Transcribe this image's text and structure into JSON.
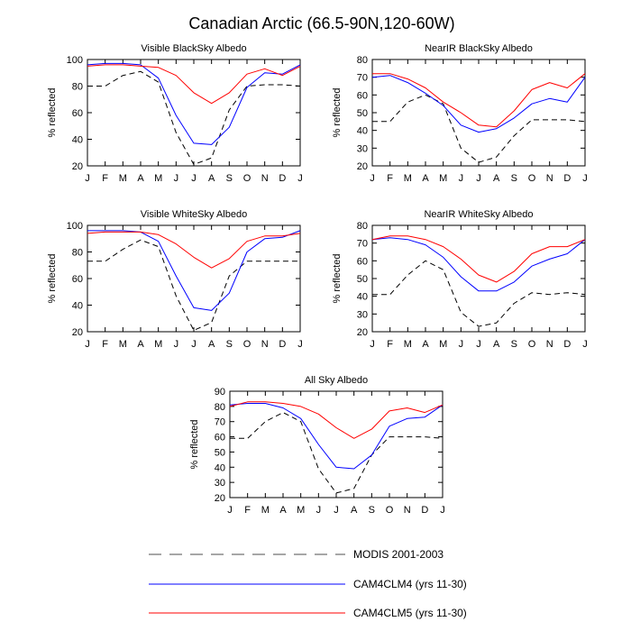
{
  "title": "Canadian Arctic (66.5-90N,120-60W)",
  "legend": [
    {
      "label": "MODIS 2001-2003",
      "color": "#000000",
      "dash": true
    },
    {
      "label": "CAM4CLM4 (yrs 11-30)",
      "color": "#0000ff",
      "dash": false
    },
    {
      "label": "CAM4CLM5 (yrs 11-30)",
      "color": "#ff0000",
      "dash": false
    }
  ],
  "chart_data": [
    {
      "type": "line",
      "title": "Visible BlackSky Albedo",
      "ylabel": "% reflected",
      "xlabel": "",
      "categories": [
        "J",
        "F",
        "M",
        "A",
        "M",
        "J",
        "J",
        "A",
        "S",
        "O",
        "N",
        "D",
        "J"
      ],
      "ylim": [
        20,
        100
      ],
      "yticks": [
        20,
        40,
        60,
        80,
        100
      ],
      "series": [
        {
          "name": "MODIS 2001-2003",
          "color": "#000000",
          "dash": true,
          "values": [
            80,
            80,
            88,
            91,
            83,
            45,
            21,
            26,
            62,
            80,
            81,
            81,
            80
          ]
        },
        {
          "name": "CAM4CLM4 (yrs 11-30)",
          "color": "#0000ff",
          "dash": false,
          "values": [
            96,
            97,
            97,
            96,
            86,
            58,
            37,
            36,
            49,
            79,
            90,
            89,
            96
          ]
        },
        {
          "name": "CAM4CLM5 (yrs 11-30)",
          "color": "#ff0000",
          "dash": false,
          "values": [
            95,
            96,
            96,
            95,
            94,
            88,
            75,
            67,
            75,
            89,
            93,
            88,
            95
          ]
        }
      ]
    },
    {
      "type": "line",
      "title": "NearIR BlackSky Albedo",
      "ylabel": "% reflected",
      "xlabel": "",
      "categories": [
        "J",
        "F",
        "M",
        "A",
        "M",
        "J",
        "J",
        "A",
        "S",
        "O",
        "N",
        "D",
        "J"
      ],
      "ylim": [
        20,
        80
      ],
      "yticks": [
        20,
        30,
        40,
        50,
        60,
        70,
        80
      ],
      "series": [
        {
          "name": "MODIS 2001-2003",
          "color": "#000000",
          "dash": true,
          "values": [
            45,
            45,
            56,
            60,
            55,
            30,
            22,
            25,
            37,
            46,
            46,
            46,
            45
          ]
        },
        {
          "name": "CAM4CLM4 (yrs 11-30)",
          "color": "#0000ff",
          "dash": false,
          "values": [
            70,
            71,
            67,
            61,
            54,
            43,
            39,
            41,
            47,
            55,
            58,
            56,
            70
          ]
        },
        {
          "name": "CAM4CLM5 (yrs 11-30)",
          "color": "#ff0000",
          "dash": false,
          "values": [
            72,
            72,
            69,
            64,
            56,
            50,
            43,
            42,
            51,
            63,
            67,
            64,
            72
          ]
        }
      ]
    },
    {
      "type": "line",
      "title": "Visible WhiteSky Albedo",
      "ylabel": "% reflected",
      "xlabel": "",
      "categories": [
        "J",
        "F",
        "M",
        "A",
        "M",
        "J",
        "J",
        "A",
        "S",
        "O",
        "N",
        "D",
        "J"
      ],
      "ylim": [
        20,
        100
      ],
      "yticks": [
        20,
        40,
        60,
        80,
        100
      ],
      "series": [
        {
          "name": "MODIS 2001-2003",
          "color": "#000000",
          "dash": true,
          "values": [
            73,
            73,
            82,
            89,
            84,
            47,
            21,
            27,
            62,
            73,
            73,
            73,
            73
          ]
        },
        {
          "name": "CAM4CLM4 (yrs 11-30)",
          "color": "#0000ff",
          "dash": false,
          "values": [
            96,
            96,
            96,
            95,
            88,
            62,
            38,
            36,
            49,
            80,
            90,
            91,
            96
          ]
        },
        {
          "name": "CAM4CLM5 (yrs 11-30)",
          "color": "#ff0000",
          "dash": false,
          "values": [
            94,
            95,
            95,
            95,
            93,
            86,
            76,
            68,
            75,
            88,
            92,
            92,
            94
          ]
        }
      ]
    },
    {
      "type": "line",
      "title": "NearIR WhiteSky Albedo",
      "ylabel": "% reflected",
      "xlabel": "",
      "categories": [
        "J",
        "F",
        "M",
        "A",
        "M",
        "J",
        "J",
        "A",
        "S",
        "O",
        "N",
        "D",
        "J"
      ],
      "ylim": [
        20,
        80
      ],
      "yticks": [
        20,
        30,
        40,
        50,
        60,
        70,
        80
      ],
      "series": [
        {
          "name": "MODIS 2001-2003",
          "color": "#000000",
          "dash": true,
          "values": [
            41,
            41,
            52,
            60,
            55,
            31,
            23,
            25,
            36,
            42,
            41,
            42,
            41
          ]
        },
        {
          "name": "CAM4CLM4 (yrs 11-30)",
          "color": "#0000ff",
          "dash": false,
          "values": [
            72,
            73,
            72,
            69,
            62,
            51,
            43,
            43,
            48,
            57,
            61,
            64,
            72
          ]
        },
        {
          "name": "CAM4CLM5 (yrs 11-30)",
          "color": "#ff0000",
          "dash": false,
          "values": [
            72,
            74,
            74,
            72,
            68,
            61,
            52,
            48,
            54,
            64,
            68,
            68,
            72
          ]
        }
      ]
    },
    {
      "type": "line",
      "title": "All Sky Albedo",
      "ylabel": "% reflected",
      "xlabel": "",
      "categories": [
        "J",
        "F",
        "M",
        "A",
        "M",
        "J",
        "J",
        "A",
        "S",
        "O",
        "N",
        "D",
        "J"
      ],
      "ylim": [
        20,
        90
      ],
      "yticks": [
        20,
        30,
        40,
        50,
        60,
        70,
        80,
        90
      ],
      "series": [
        {
          "name": "MODIS 2001-2003",
          "color": "#000000",
          "dash": true,
          "values": [
            59,
            59,
            70,
            76,
            70,
            39,
            23,
            26,
            48,
            60,
            60,
            60,
            59
          ]
        },
        {
          "name": "CAM4CLM4 (yrs 11-30)",
          "color": "#0000ff",
          "dash": false,
          "values": [
            81,
            82,
            82,
            79,
            72,
            55,
            40,
            39,
            48,
            67,
            72,
            73,
            81
          ]
        },
        {
          "name": "CAM4CLM5 (yrs 11-30)",
          "color": "#ff0000",
          "dash": false,
          "values": [
            80,
            83,
            83,
            82,
            80,
            75,
            66,
            59,
            65,
            77,
            79,
            76,
            81
          ]
        }
      ]
    }
  ]
}
